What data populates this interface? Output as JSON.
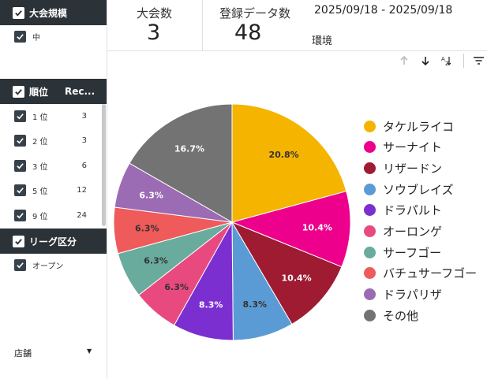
{
  "sidebar": {
    "size_section": {
      "title": "大会規模",
      "items": [
        {
          "label": "中"
        }
      ]
    },
    "rank_section": {
      "title": "順位",
      "count_header": "Rec...",
      "items": [
        {
          "label": "1 位",
          "count": "3"
        },
        {
          "label": "2 位",
          "count": "3"
        },
        {
          "label": "3 位",
          "count": "6"
        },
        {
          "label": "5 位",
          "count": "12"
        },
        {
          "label": "9 位",
          "count": "24"
        }
      ]
    },
    "league_section": {
      "title": "リーグ区分",
      "items": [
        {
          "label": "オープン"
        }
      ]
    },
    "store_dropdown": {
      "label": "店舗"
    }
  },
  "kpis": [
    {
      "label": "大会数",
      "value": "3"
    },
    {
      "label": "登録データ数",
      "value": "48"
    }
  ],
  "date_range": "2025/09/18 - 2025/09/18",
  "chart_title": "環境",
  "toolbar": {
    "icons": [
      "arrow-up-icon",
      "arrow-down-icon",
      "sort-az-icon",
      "filter-icon"
    ]
  },
  "chart_data": {
    "type": "pie",
    "title": "環境",
    "series": [
      {
        "name": "タケルライコ",
        "value": 20.8,
        "label": "20.8%",
        "color": "#f4b400"
      },
      {
        "name": "サーナイト",
        "value": 10.4,
        "label": "10.4%",
        "color": "#ec008c"
      },
      {
        "name": "リザードン",
        "value": 10.4,
        "label": "10.4%",
        "color": "#9e1b32"
      },
      {
        "name": "ソウブレイズ",
        "value": 8.3,
        "label": "8.3%",
        "color": "#5b9bd5"
      },
      {
        "name": "ドラパルト",
        "value": 8.3,
        "label": "8.3%",
        "color": "#7b2fd0"
      },
      {
        "name": "オーロンゲ",
        "value": 6.3,
        "label": "6.3%",
        "color": "#e84a7f"
      },
      {
        "name": "サーフゴー",
        "value": 6.3,
        "label": "6.3%",
        "color": "#69ac9e"
      },
      {
        "name": "バチュサーフゴー",
        "value": 6.3,
        "label": "6.3%",
        "color": "#ef5a5a"
      },
      {
        "name": "ドラパリザ",
        "value": 6.3,
        "label": "6.3%",
        "color": "#9b6bb3"
      },
      {
        "name": "その他",
        "value": 16.7,
        "label": "16.7%",
        "color": "#737373"
      }
    ],
    "legend_position": "right"
  }
}
